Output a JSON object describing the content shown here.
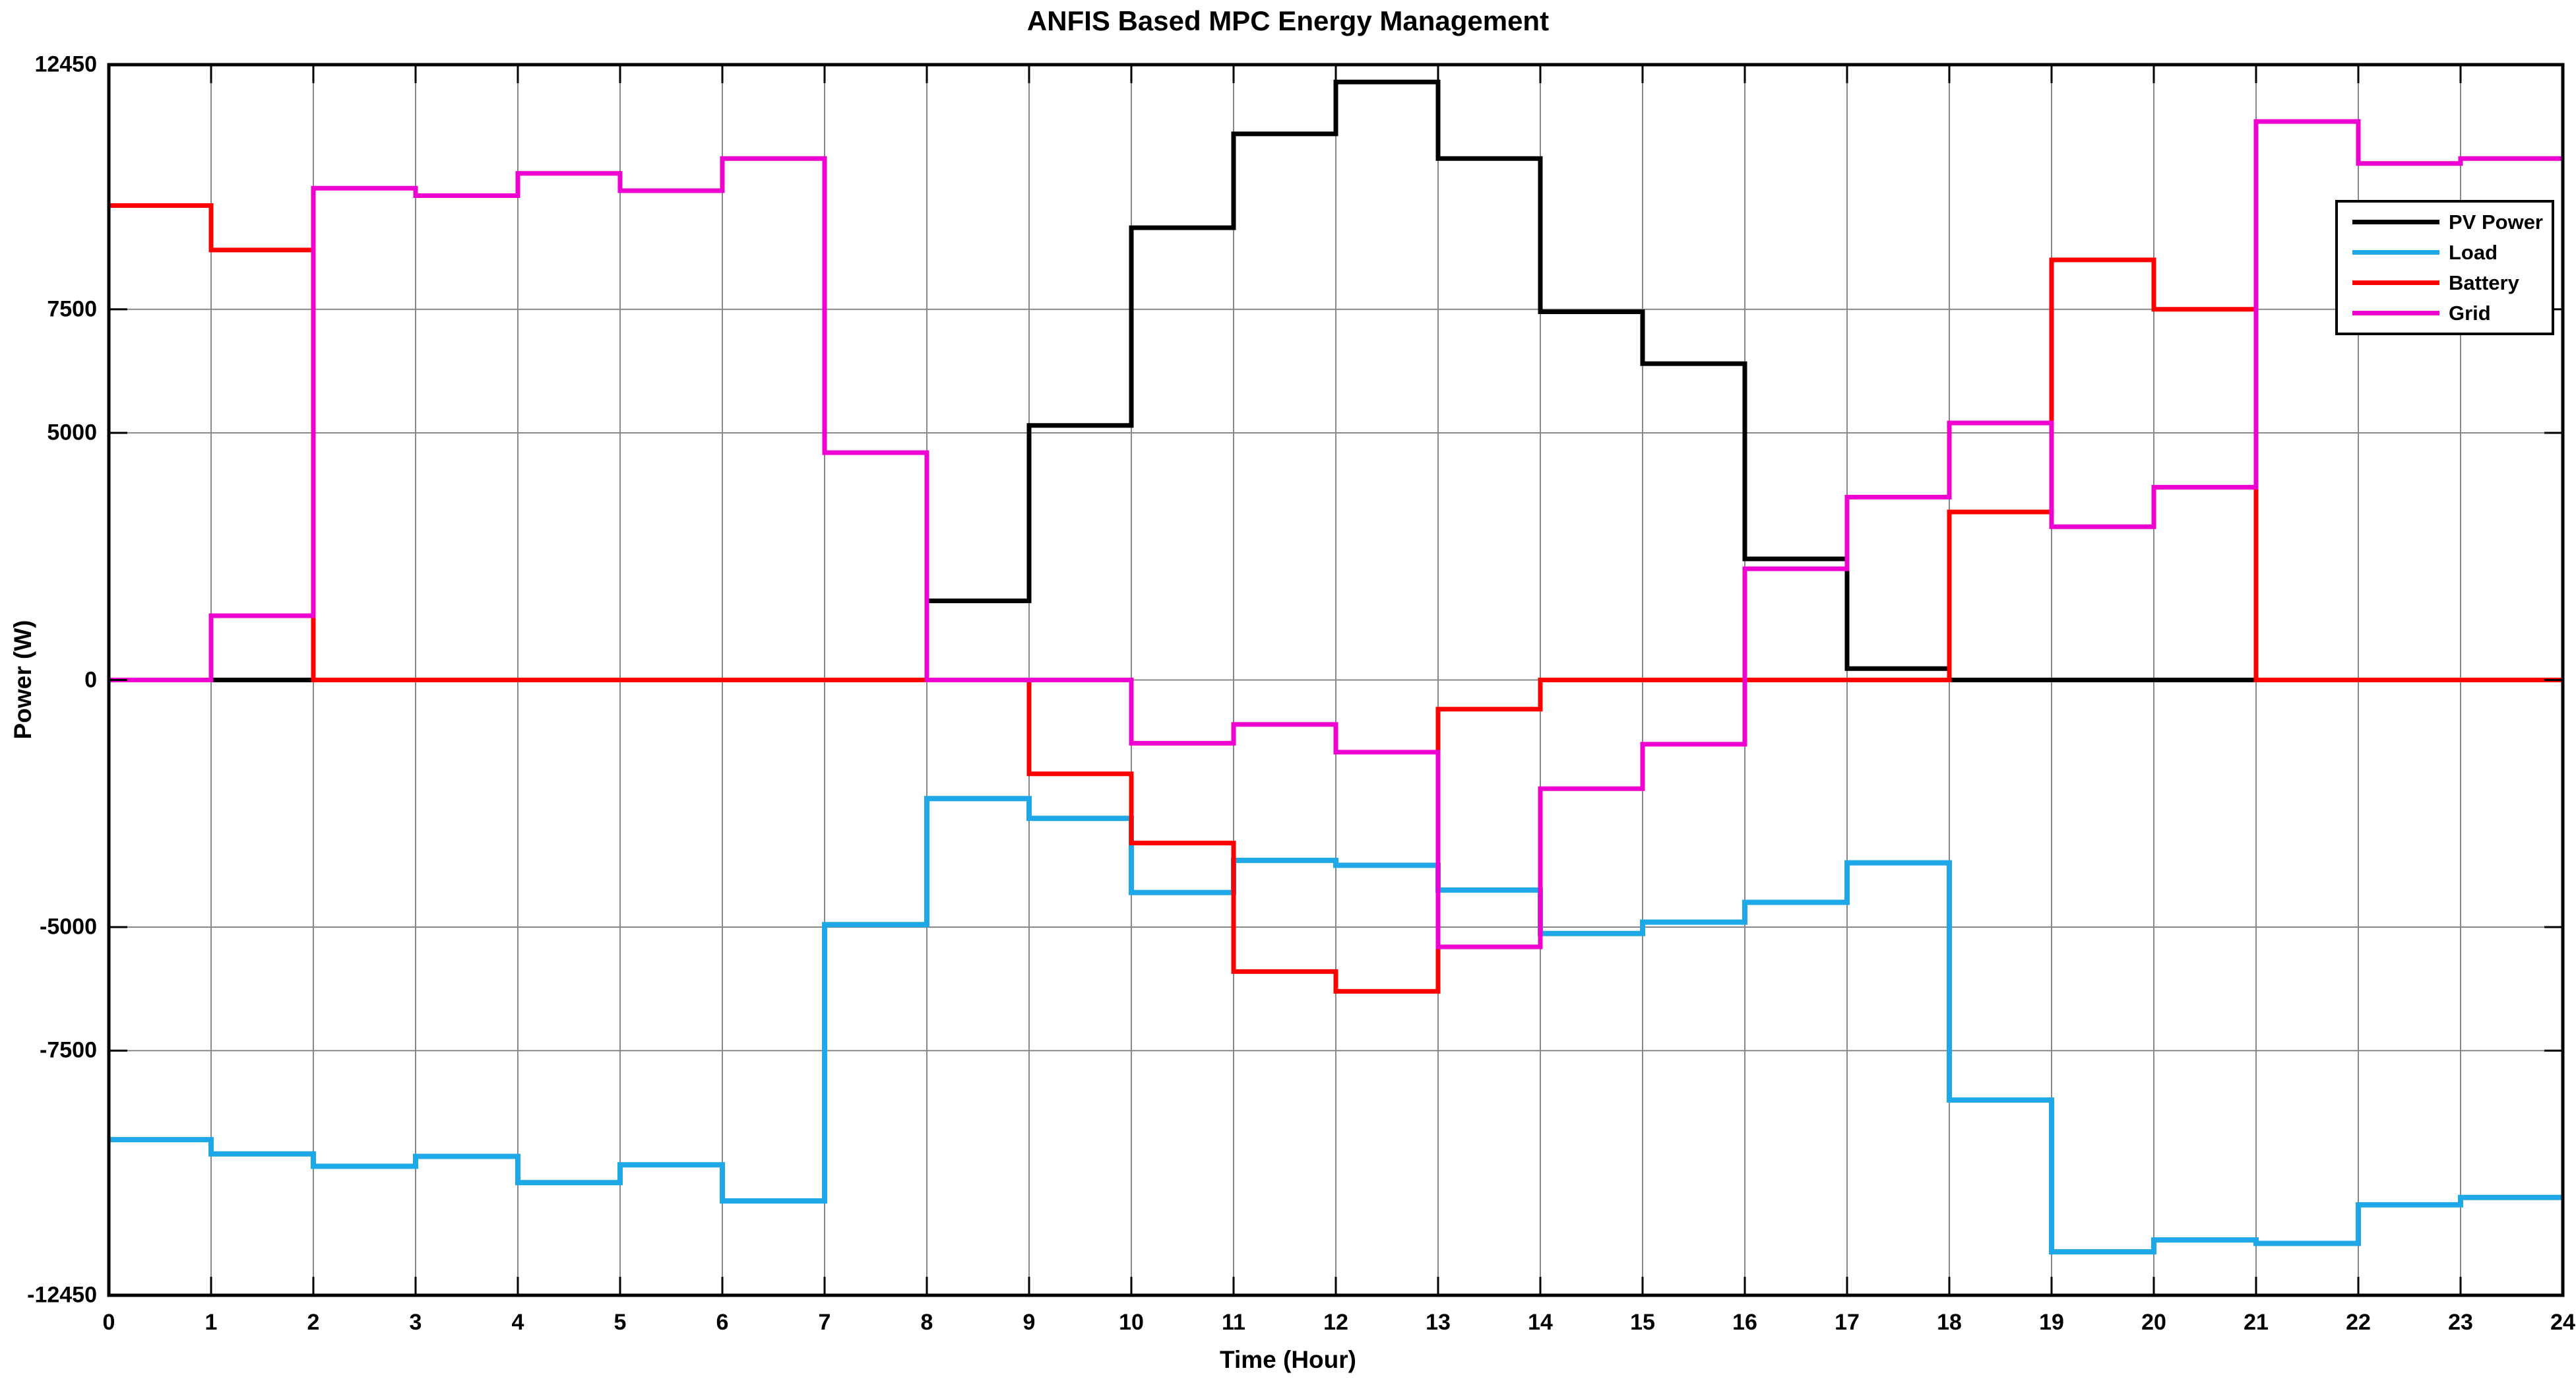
{
  "title": "ANFIS  Based MPC Energy Management",
  "chart_data": {
    "type": "stairs",
    "title": "ANFIS  Based MPC Energy Management",
    "xlabel": "Time (Hour)",
    "ylabel": "Power (W)",
    "xlim": [
      0,
      24
    ],
    "ylim": [
      -12450,
      12450
    ],
    "x_ticks": [
      0,
      1,
      2,
      3,
      4,
      5,
      6,
      7,
      8,
      9,
      10,
      11,
      12,
      13,
      14,
      15,
      16,
      17,
      18,
      19,
      20,
      21,
      22,
      23,
      24
    ],
    "y_ticks": [
      12450,
      7500,
      5000,
      0,
      -5000,
      -7500,
      -12450
    ],
    "grid": true,
    "legend_position": "upper right",
    "hours": [
      0,
      1,
      2,
      3,
      4,
      5,
      6,
      7,
      8,
      9,
      10,
      11,
      12,
      13,
      14,
      15,
      16,
      17,
      18,
      19,
      20,
      21,
      22,
      23
    ],
    "series": [
      {
        "name": "PV Power",
        "color": "#000000",
        "values": [
          0,
          0,
          0,
          0,
          0,
          0,
          0,
          0,
          1600,
          5150,
          9150,
          11050,
          12100,
          10550,
          7450,
          6400,
          2450,
          230,
          0,
          0,
          0,
          0,
          0,
          0
        ]
      },
      {
        "name": "Load",
        "color": "#1FA8E8",
        "values": [
          -9300,
          -9590,
          -9840,
          -9640,
          -10170,
          -9810,
          -10540,
          -4950,
          -2400,
          -2800,
          -4300,
          -3650,
          -3750,
          -4250,
          -5130,
          -4900,
          -4500,
          -3700,
          -8500,
          -11570,
          -11330,
          -11400,
          -10620,
          -10470
        ]
      },
      {
        "name": "Battery",
        "color": "#FF0000",
        "values": [
          9600,
          8700,
          0,
          0,
          0,
          0,
          0,
          0,
          0,
          -1900,
          -3300,
          -5900,
          -6300,
          -590,
          0,
          0,
          0,
          0,
          3400,
          8500,
          7500,
          0,
          0,
          0
        ]
      },
      {
        "name": "Grid",
        "color": "#EE00D0",
        "values": [
          0,
          1300,
          9950,
          9800,
          10250,
          9900,
          10550,
          4600,
          0,
          0,
          -1280,
          -900,
          -1460,
          -5400,
          -2200,
          -1300,
          2250,
          3700,
          5200,
          3100,
          3900,
          11300,
          10450,
          10550
        ]
      }
    ],
    "styles": {
      "grid_color": "#888888",
      "axis_color": "#000000",
      "background": "#ffffff"
    }
  }
}
